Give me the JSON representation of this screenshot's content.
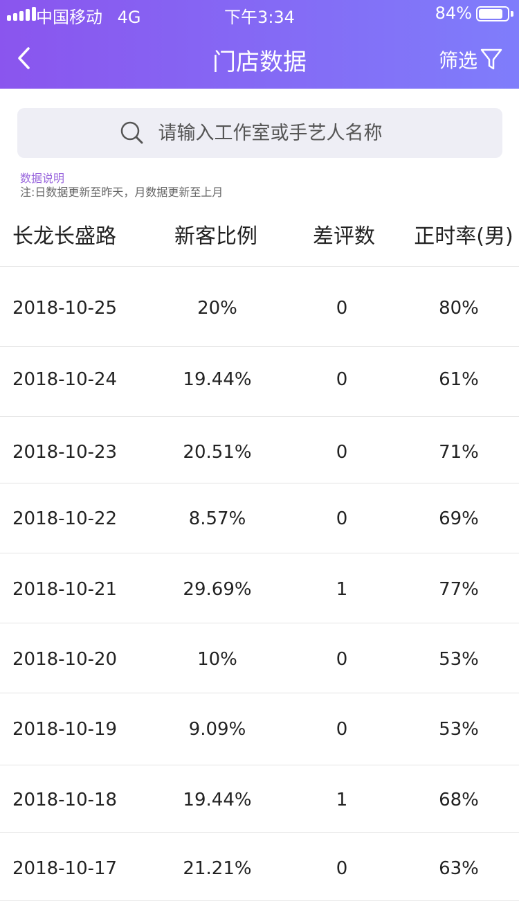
{
  "status_bar": {
    "carrier": "中国移动",
    "network": "4G",
    "time": "下午3:34",
    "battery": "84%",
    "battery_level": 0.84
  },
  "nav": {
    "back_icon": "chevron-left-icon",
    "title": "门店数据",
    "filter_label": "筛选",
    "filter_icon": "funnel-icon"
  },
  "search": {
    "placeholder": "请输入工作室或手艺人名称",
    "value": "",
    "icon": "search-icon"
  },
  "note": {
    "title": "数据说明",
    "text": "注:日数据更新至昨天，月数据更新至上月"
  },
  "table": {
    "headers": [
      "长龙长盛路",
      "新客比例",
      "差评数",
      "正时率(男)"
    ],
    "rows": [
      {
        "date": "2018-10-25",
        "new_ratio": "20%",
        "bad_reviews": "0",
        "on_time": "80%"
      },
      {
        "date": "2018-10-24",
        "new_ratio": "19.44%",
        "bad_reviews": "0",
        "on_time": "61%"
      },
      {
        "date": "2018-10-23",
        "new_ratio": "20.51%",
        "bad_reviews": "0",
        "on_time": "71%"
      },
      {
        "date": "2018-10-22",
        "new_ratio": "8.57%",
        "bad_reviews": "0",
        "on_time": "69%"
      },
      {
        "date": "2018-10-21",
        "new_ratio": "29.69%",
        "bad_reviews": "1",
        "on_time": "77%"
      },
      {
        "date": "2018-10-20",
        "new_ratio": "10%",
        "bad_reviews": "0",
        "on_time": "53%"
      },
      {
        "date": "2018-10-19",
        "new_ratio": "9.09%",
        "bad_reviews": "0",
        "on_time": "53%"
      },
      {
        "date": "2018-10-18",
        "new_ratio": "19.44%",
        "bad_reviews": "1",
        "on_time": "68%"
      },
      {
        "date": "2018-10-17",
        "new_ratio": "21.21%",
        "bad_reviews": "0",
        "on_time": "63%"
      }
    ]
  },
  "colors": {
    "header_gradient_start": "#8a55ee",
    "header_gradient_end": "#7f7dfb",
    "note_title": "#9966dd",
    "search_bg": "#eeeef5"
  }
}
